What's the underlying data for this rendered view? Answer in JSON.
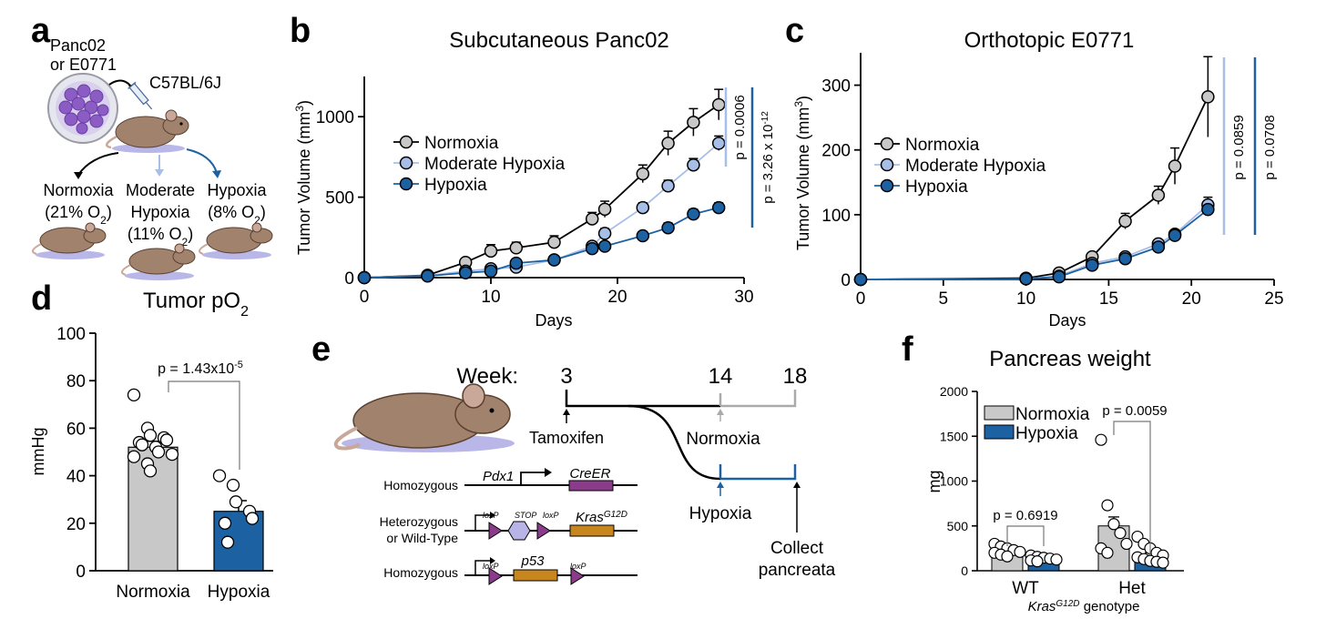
{
  "panels": {
    "a": {
      "label": "a",
      "cells": "Panc02\nor E0771",
      "strain": "C57BL/6J",
      "groups": [
        {
          "name": "Normoxia",
          "o2": "(21% O",
          "o2_sub": "2",
          "o2_close": ")"
        },
        {
          "name": "Moderate\nHypoxia",
          "o2": "(11% O",
          "o2_sub": "2",
          "o2_close": ")"
        },
        {
          "name": "Hypoxia",
          "o2": "(8% O",
          "o2_sub": "2",
          "o2_close": ")"
        }
      ],
      "colors": {
        "normoxia_arrow": "#000000",
        "moderate_arrow": "#a7bfe6",
        "hypoxia_arrow": "#1c62a3"
      }
    },
    "e": {
      "label": "e",
      "week_label": "Week:",
      "weeks": [
        "3",
        "14",
        "18"
      ],
      "tamoxifen": "Tamoxifen",
      "normoxia": "Normoxia",
      "hypoxia": "Hypoxia",
      "collect": "Collect\npancreata",
      "alleles": [
        {
          "zygosity": "Homozygous",
          "promoter": "Pdx1",
          "gene": "CreER"
        },
        {
          "zygosity": "Heterozygous\nor Wild-Type",
          "loxp1": "loxP",
          "stop": "STOP",
          "loxp2": "loxP",
          "gene": "Kras",
          "gene_sup": "G12D"
        },
        {
          "zygosity": "Homozygous",
          "loxp1": "loxP",
          "gene": "p53",
          "loxp2": "loxP"
        }
      ]
    }
  },
  "colors": {
    "normoxia": "#c8c8c8",
    "moderate": "#a7bfe6",
    "hypoxia": "#1c62a3",
    "cassette_purple": "#8a3c8a",
    "cassette_orange": "#c8861e",
    "stop_lavender": "#b9b4e6"
  },
  "chart_data": [
    {
      "panel": "b",
      "type": "line",
      "title": "Subcutaneous Panc02",
      "xlabel": "Days",
      "ylabel": "Tumor Volume (mm",
      "ylabel_sup": "3",
      "ylabel_close": ")",
      "xlim": [
        0,
        30
      ],
      "ylim": [
        0,
        1250
      ],
      "xticks": [
        "0",
        "10",
        "20",
        "30"
      ],
      "yticks": [
        "0",
        "500",
        "1000"
      ],
      "legend": [
        "Normoxia",
        "Moderate Hypoxia",
        "Hypoxia"
      ],
      "series": [
        {
          "name": "Normoxia",
          "x": [
            0,
            5,
            8,
            10,
            12,
            15,
            18,
            19,
            22,
            24,
            26,
            28
          ],
          "y": [
            0,
            15,
            95,
            165,
            185,
            220,
            365,
            425,
            645,
            835,
            965,
            1075
          ],
          "err": [
            0,
            8,
            15,
            40,
            35,
            40,
            40,
            50,
            55,
            75,
            85,
            95
          ]
        },
        {
          "name": "Moderate Hypoxia",
          "x": [
            0,
            5,
            8,
            10,
            12,
            15,
            18,
            19,
            22,
            24,
            26,
            28
          ],
          "y": [
            0,
            12,
            40,
            55,
            65,
            110,
            195,
            275,
            435,
            570,
            700,
            835
          ],
          "err": [
            0,
            5,
            8,
            10,
            12,
            20,
            25,
            30,
            30,
            35,
            40,
            45
          ]
        },
        {
          "name": "Hypoxia",
          "x": [
            0,
            5,
            8,
            10,
            12,
            15,
            18,
            19,
            22,
            24,
            26,
            28
          ],
          "y": [
            0,
            10,
            30,
            40,
            90,
            110,
            180,
            195,
            260,
            310,
            395,
            435
          ],
          "err": [
            0,
            5,
            8,
            10,
            12,
            15,
            20,
            20,
            25,
            30,
            30,
            30
          ]
        }
      ],
      "annotations": [
        {
          "text": "p = 0.0006"
        },
        {
          "text": "p = 3.26 x 10",
          "sup": "-12"
        }
      ]
    },
    {
      "panel": "c",
      "type": "line",
      "title": "Orthotopic E0771",
      "xlabel": "Days",
      "ylabel": "Tumor Volume (mm",
      "ylabel_sup": "3",
      "ylabel_close": ")",
      "xlim": [
        0,
        25
      ],
      "ylim": [
        0,
        350
      ],
      "xticks": [
        "0",
        "5",
        "10",
        "15",
        "20",
        "25"
      ],
      "yticks": [
        "0",
        "100",
        "200",
        "300"
      ],
      "legend": [
        "Normoxia",
        "Moderate Hypoxia",
        "Hypoxia"
      ],
      "series": [
        {
          "name": "Normoxia",
          "x": [
            0,
            10,
            12,
            14,
            16,
            18,
            19,
            21
          ],
          "y": [
            0,
            2,
            10,
            35,
            90,
            130,
            175,
            282
          ],
          "err": [
            0,
            2,
            4,
            5,
            12,
            14,
            28,
            62
          ]
        },
        {
          "name": "Moderate Hypoxia",
          "x": [
            0,
            10,
            12,
            14,
            16,
            18,
            19,
            21
          ],
          "y": [
            0,
            1,
            5,
            25,
            35,
            55,
            70,
            115
          ],
          "err": [
            0,
            1,
            2,
            3,
            4,
            6,
            6,
            12
          ]
        },
        {
          "name": "Hypoxia",
          "x": [
            0,
            10,
            12,
            14,
            16,
            18,
            19,
            21
          ],
          "y": [
            0,
            1,
            4,
            22,
            32,
            50,
            68,
            108
          ],
          "err": [
            0,
            1,
            2,
            3,
            4,
            5,
            6,
            10
          ]
        }
      ],
      "annotations": [
        {
          "text": "p = 0.0859"
        },
        {
          "text": "p = 0.0708"
        }
      ]
    },
    {
      "panel": "d",
      "type": "bar",
      "title": "Tumor pO",
      "title_sub": "2",
      "ylabel": "mmHg",
      "ylim": [
        0,
        100
      ],
      "yticks": [
        "0",
        "20",
        "40",
        "60",
        "80",
        "100"
      ],
      "categories": [
        "Normoxia",
        "Hypoxia"
      ],
      "values": [
        52,
        25
      ],
      "errors": [
        2.5,
        4.5
      ],
      "points": [
        [
          74,
          60,
          57,
          56,
          55,
          54,
          53,
          52,
          50,
          49,
          48,
          45,
          42
        ],
        [
          40,
          36,
          29,
          25,
          22,
          20,
          12
        ]
      ],
      "annotation": {
        "text": "p = 1.43x10",
        "sup": "-5"
      }
    },
    {
      "panel": "f",
      "type": "bar",
      "title": "Pancreas weight",
      "ylabel": "mg",
      "xlabel": "Kras",
      "xlabel_sup": "G12D",
      "xlabel_rest": " genotype",
      "ylim": [
        0,
        2000
      ],
      "yticks": [
        "0",
        "500",
        "1000",
        "1500",
        "2000"
      ],
      "categories": [
        "WT",
        "Het"
      ],
      "legend": [
        "Normoxia",
        "Hypoxia"
      ],
      "series": [
        {
          "name": "Normoxia",
          "values": [
            220,
            500
          ],
          "errors": [
            25,
            100
          ]
        },
        {
          "name": "Hypoxia",
          "values": [
            130,
            170
          ],
          "errors": [
            15,
            30
          ]
        }
      ],
      "points": {
        "WT": [
          [
            300,
            270,
            250,
            230,
            210,
            200,
            180,
            160
          ],
          [
            170,
            155,
            145,
            135,
            125,
            115,
            105
          ]
        ],
        "Het": [
          [
            1460,
            730,
            520,
            420,
            300,
            250,
            200
          ],
          [
            380,
            300,
            250,
            200,
            170,
            150,
            130,
            110,
            100,
            90
          ]
        ]
      },
      "annotations": [
        {
          "text": "p = 0.6919"
        },
        {
          "text": "p = 0.0059"
        }
      ]
    }
  ]
}
